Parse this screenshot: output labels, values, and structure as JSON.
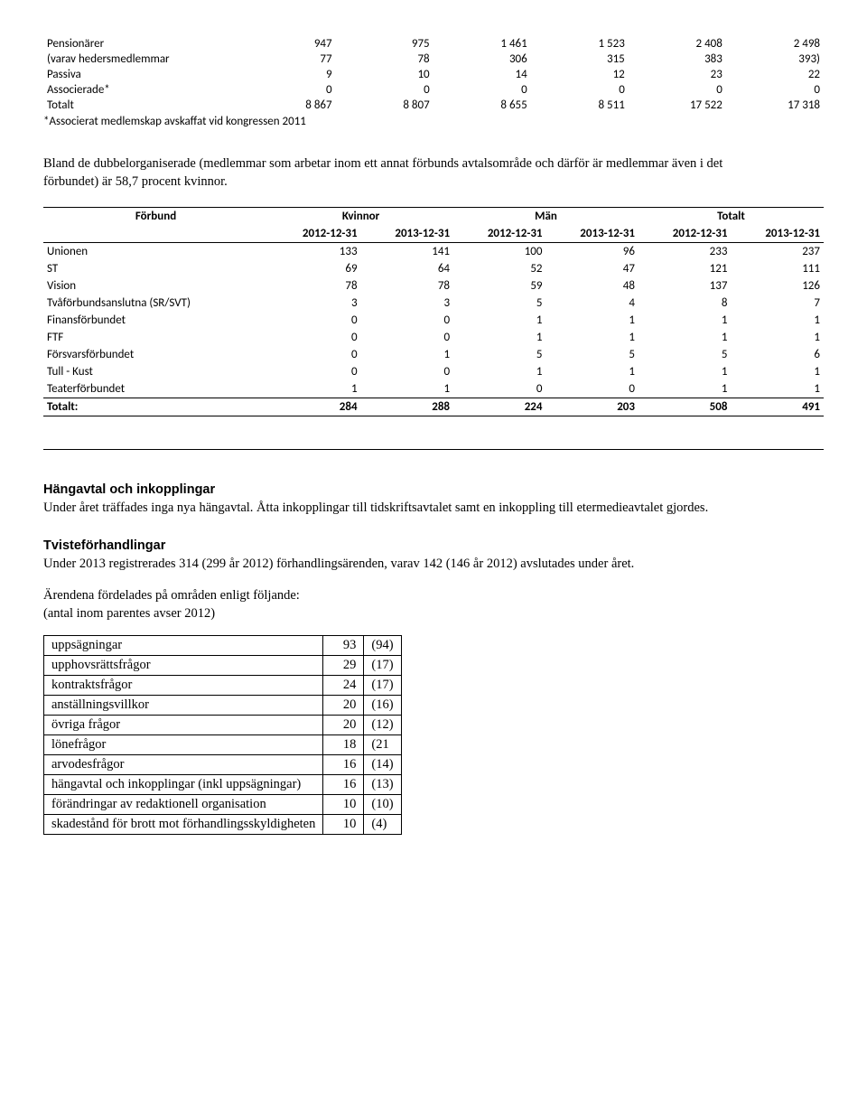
{
  "table1": {
    "rows": [
      {
        "label": "Pensionärer",
        "c1": "947",
        "c2": "975",
        "c3": "1 461",
        "c4": "1 523",
        "c5": "2 408",
        "c6": "2 498"
      },
      {
        "label": "(varav hedersmedlemmar",
        "c1": "77",
        "c2": "78",
        "c3": "306",
        "c4": "315",
        "c5": "383",
        "c6": "393)"
      },
      {
        "label": "Passiva",
        "c1": "9",
        "c2": "10",
        "c3": "14",
        "c4": "12",
        "c5": "23",
        "c6": "22"
      },
      {
        "label": "Associerade*",
        "c1": "0",
        "c2": "0",
        "c3": "0",
        "c4": "0",
        "c5": "0",
        "c6": "0"
      },
      {
        "label": "Totalt",
        "c1": "8 867",
        "c2": "8 807",
        "c3": "8 655",
        "c4": "8 511",
        "c5": "17 522",
        "c6": "17 318"
      }
    ],
    "footnote": "*Associerat medlemskap avskaffat vid kongressen 2011"
  },
  "paragraph1": "Bland de dubbelorganiserade (medlemmar som arbetar inom ett annat förbunds avtalsområde och därför är medlemmar även i det förbundet) är 58,7 procent kvinnor.",
  "table2": {
    "header_row1": {
      "col0": "Förbund",
      "g1": "Kvinnor",
      "g2": "Män",
      "g3": "Totalt"
    },
    "header_row2": [
      "2012-12-31",
      "2013-12-31",
      "2012-12-31",
      "2013-12-31",
      "2012-12-31",
      "2013-12-31"
    ],
    "rows": [
      {
        "label": "Unionen",
        "v": [
          "133",
          "141",
          "100",
          "96",
          "233",
          "237"
        ]
      },
      {
        "label": "ST",
        "v": [
          "69",
          "64",
          "52",
          "47",
          "121",
          "111"
        ]
      },
      {
        "label": "Vision",
        "v": [
          "78",
          "78",
          "59",
          "48",
          "137",
          "126"
        ]
      },
      {
        "label": "Tvåförbundsanslutna (SR/SVT)",
        "v": [
          "3",
          "3",
          "5",
          "4",
          "8",
          "7"
        ]
      },
      {
        "label": "Finansförbundet",
        "v": [
          "0",
          "0",
          "1",
          "1",
          "1",
          "1"
        ]
      },
      {
        "label": "FTF",
        "v": [
          "0",
          "0",
          "1",
          "1",
          "1",
          "1"
        ]
      },
      {
        "label": "Försvarsförbundet",
        "v": [
          "0",
          "1",
          "5",
          "5",
          "5",
          "6"
        ]
      },
      {
        "label": "Tull - Kust",
        "v": [
          "0",
          "0",
          "1",
          "1",
          "1",
          "1"
        ]
      },
      {
        "label": "Teaterförbundet",
        "v": [
          "1",
          "1",
          "0",
          "0",
          "1",
          "1"
        ]
      }
    ],
    "total": {
      "label": "Totalt:",
      "v": [
        "284",
        "288",
        "224",
        "203",
        "508",
        "491"
      ]
    }
  },
  "section1": {
    "heading": "Hängavtal och inkopplingar",
    "text": "Under året träffades inga nya hängavtal. Åtta inkopplingar till tidskriftsavtalet samt en inkoppling till etermedieavtalet gjordes."
  },
  "section2": {
    "heading": "Tvisteförhandlingar",
    "text": "Under 2013 registrerades 314 (299 år 2012) förhandlingsärenden, varav 142 (146 år 2012) avslutades under året."
  },
  "section3": {
    "line1": "Ärendena fördelades på områden enligt följande:",
    "line2": "(antal inom parentes avser 2012)"
  },
  "table3": {
    "rows": [
      {
        "label": "uppsägningar",
        "n": "93",
        "p": "(94)"
      },
      {
        "label": "upphovsrättsfrågor",
        "n": "29",
        "p": "(17)"
      },
      {
        "label": "kontraktsfrågor",
        "n": "24",
        "p": "(17)"
      },
      {
        "label": "anställningsvillkor",
        "n": "20",
        "p": "(16)"
      },
      {
        "label": "övriga frågor",
        "n": "20",
        "p": "(12)"
      },
      {
        "label": "lönefrågor",
        "n": "18",
        "p": "(21"
      },
      {
        "label": "arvodesfrågor",
        "n": "16",
        "p": "(14)"
      },
      {
        "label": "hängavtal och inkopplingar (inkl uppsägningar)",
        "n": "16",
        "p": "(13)"
      },
      {
        "label": "förändringar av redaktionell organisation",
        "n": "10",
        "p": "(10)"
      },
      {
        "label": "skadestånd för brott mot förhandlingsskyldigheten",
        "n": "10",
        "p": "(4)"
      }
    ]
  }
}
